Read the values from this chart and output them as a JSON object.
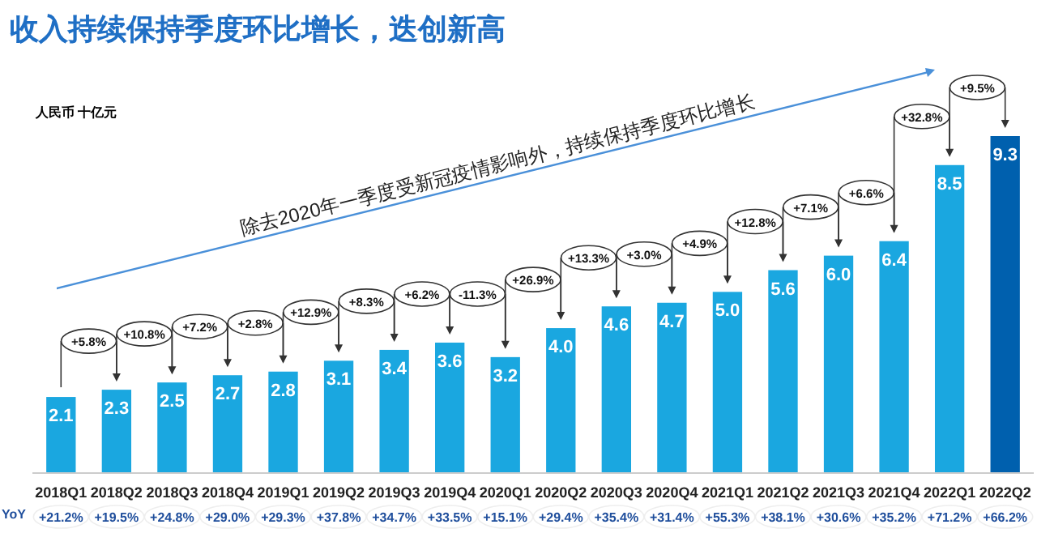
{
  "chart_data": {
    "type": "bar",
    "title": "收入持续保持季度环比增长，迭创新高",
    "ylabel": "人民币 十亿元",
    "categories": [
      "2018Q1",
      "2018Q2",
      "2018Q3",
      "2018Q4",
      "2019Q1",
      "2019Q2",
      "2019Q3",
      "2019Q4",
      "2020Q1",
      "2020Q2",
      "2020Q3",
      "2020Q4",
      "2021Q1",
      "2021Q2",
      "2021Q3",
      "2021Q4",
      "2022Q1",
      "2022Q2"
    ],
    "values": [
      2.1,
      2.3,
      2.5,
      2.7,
      2.8,
      3.1,
      3.4,
      3.6,
      3.2,
      4.0,
      4.6,
      4.7,
      5.0,
      5.6,
      6.0,
      6.4,
      8.5,
      9.3
    ],
    "colors": [
      "#1aa7e0",
      "#1aa7e0",
      "#1aa7e0",
      "#1aa7e0",
      "#1aa7e0",
      "#1aa7e0",
      "#1aa7e0",
      "#1aa7e0",
      "#1aa7e0",
      "#1aa7e0",
      "#1aa7e0",
      "#1aa7e0",
      "#1aa7e0",
      "#1aa7e0",
      "#1aa7e0",
      "#1aa7e0",
      "#1aa7e0",
      "#0060ae"
    ],
    "value_labels": [
      "2.1",
      "2.3",
      "2.5",
      "2.7",
      "2.8",
      "3.1",
      "3.4",
      "3.6",
      "3.2",
      "4.0",
      "4.6",
      "4.7",
      "5.0",
      "5.6",
      "6.0",
      "6.4",
      "8.5",
      "9.3"
    ],
    "annotations": [
      "除去2020年一季度受新冠疫情影响外，持续保持季度环比增长",
      "YoY",
      {
        "text": "+5.8%",
        "x": "2018Q2",
        "y": 2.3
      },
      {
        "text": "+10.8%",
        "x": "2018Q3",
        "y": 2.5
      },
      {
        "text": "+7.2%",
        "x": "2018Q4",
        "y": 2.7
      },
      {
        "text": "+2.8%",
        "x": "2019Q1",
        "y": 2.8
      },
      {
        "text": "+12.9%",
        "x": "2019Q2",
        "y": 3.1
      },
      {
        "text": "+8.3%",
        "x": "2019Q3",
        "y": 3.4
      },
      {
        "text": "+6.2%",
        "x": "2019Q4",
        "y": 3.6
      },
      {
        "text": "-11.3%",
        "x": "2020Q1",
        "y": 3.2
      },
      {
        "text": "+26.9%",
        "x": "2020Q2",
        "y": 4.0
      },
      {
        "text": "+13.3%",
        "x": "2020Q3",
        "y": 4.6
      },
      {
        "text": "+3.0%",
        "x": "2020Q4",
        "y": 4.7
      },
      {
        "text": "+4.9%",
        "x": "2021Q1",
        "y": 5.0
      },
      {
        "text": "+12.8%",
        "x": "2021Q2",
        "y": 5.6
      },
      {
        "text": "+7.1%",
        "x": "2021Q3",
        "y": 6.0
      },
      {
        "text": "+6.6%",
        "x": "2021Q4",
        "y": 6.4
      },
      {
        "text": "+32.8%",
        "x": "2022Q1",
        "y": 8.5
      },
      {
        "text": "+9.5%",
        "x": "2022Q2",
        "y": 9.3
      },
      "+21.2%",
      "+19.5%",
      "+24.8%",
      "+29.0%",
      "+29.3%",
      "+37.8%",
      "+34.7%",
      "+33.5%",
      "+15.1%",
      "+29.4%",
      "+35.4%",
      "+31.4%",
      "+55.3%",
      "+38.1%",
      "+30.6%",
      "+35.2%",
      "+71.2%",
      "+66.2%"
    ]
  }
}
